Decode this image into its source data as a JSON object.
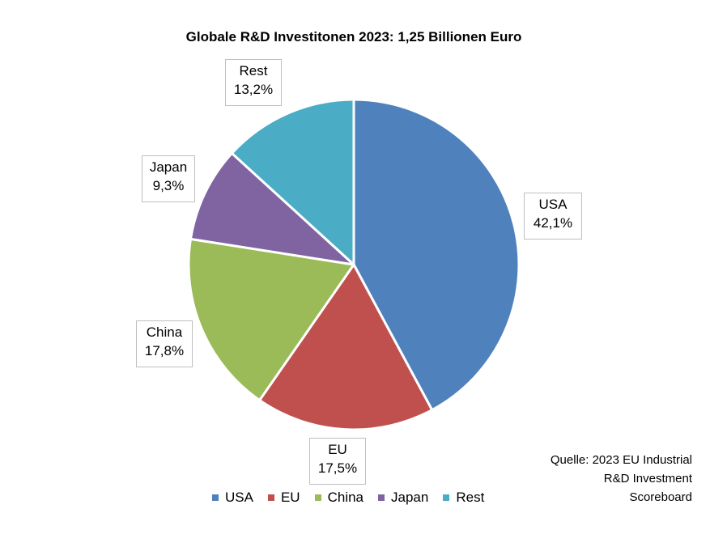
{
  "chart_data": {
    "type": "pie",
    "title": "Globale R&D Investitonen 2023: 1,25 Billionen Euro",
    "categories": [
      "USA",
      "EU",
      "China",
      "Japan",
      "Rest"
    ],
    "values": [
      42.1,
      17.5,
      17.8,
      9.3,
      13.2
    ],
    "value_labels": [
      "42,1%",
      "17,5%",
      "17,8%",
      "9,3%",
      "13,2%"
    ],
    "colors": [
      "#4F81BD",
      "#C0504D",
      "#9BBB59",
      "#8064A2",
      "#4BACC6"
    ],
    "start_angle_deg": 0,
    "direction": "clockwise",
    "legend_position": "bottom"
  },
  "source_note": {
    "lines": [
      "Quelle: 2023 EU Industrial",
      "R&D Investment",
      "Scoreboard"
    ]
  }
}
